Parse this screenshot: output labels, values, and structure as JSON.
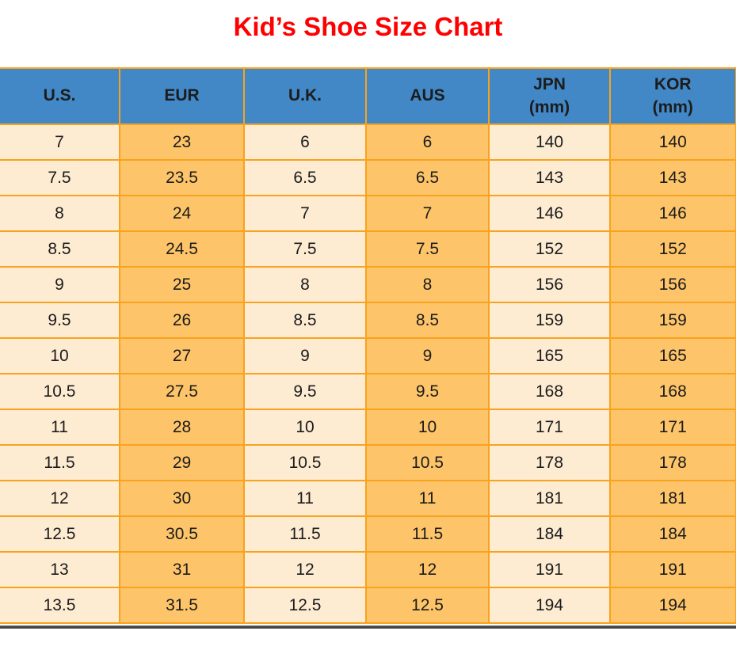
{
  "title": {
    "text": "Kid’s Shoe Size Chart"
  },
  "colors": {
    "title_red": "#FF0000",
    "header_blue": "#4288C7",
    "cell_cream": "#FDEBD2",
    "cell_orange": "#FDC469",
    "grid_orange": "#F9A21D",
    "bottom_bar": "#454545"
  },
  "table": {
    "columns": [
      {
        "key": "us",
        "label": "U.S."
      },
      {
        "key": "eur",
        "label": "EUR"
      },
      {
        "key": "uk",
        "label": "U.K."
      },
      {
        "key": "aus",
        "label": "AUS"
      },
      {
        "key": "jpn",
        "label": "JPN",
        "sublabel": "(mm)"
      },
      {
        "key": "kor",
        "label": "KOR",
        "sublabel": "(mm)"
      }
    ],
    "rows": [
      [
        "7",
        "23",
        "6",
        "6",
        "140",
        "140"
      ],
      [
        "7.5",
        "23.5",
        "6.5",
        "6.5",
        "143",
        "143"
      ],
      [
        "8",
        "24",
        "7",
        "7",
        "146",
        "146"
      ],
      [
        "8.5",
        "24.5",
        "7.5",
        "7.5",
        "152",
        "152"
      ],
      [
        "9",
        "25",
        "8",
        "8",
        "156",
        "156"
      ],
      [
        "9.5",
        "26",
        "8.5",
        "8.5",
        "159",
        "159"
      ],
      [
        "10",
        "27",
        "9",
        "9",
        "165",
        "165"
      ],
      [
        "10.5",
        "27.5",
        "9.5",
        "9.5",
        "168",
        "168"
      ],
      [
        "11",
        "28",
        "10",
        "10",
        "171",
        "171"
      ],
      [
        "11.5",
        "29",
        "10.5",
        "10.5",
        "178",
        "178"
      ],
      [
        "12",
        "30",
        "11",
        "11",
        "181",
        "181"
      ],
      [
        "12.5",
        "30.5",
        "11.5",
        "11.5",
        "184",
        "184"
      ],
      [
        "13",
        "31",
        "12",
        "12",
        "191",
        "191"
      ],
      [
        "13.5",
        "31.5",
        "12.5",
        "12.5",
        "194",
        "194"
      ]
    ]
  },
  "chart_data": {
    "type": "table",
    "title": "Kid’s Shoe Size Chart",
    "columns": [
      "U.S.",
      "EUR",
      "U.K.",
      "AUS",
      "JPN (mm)",
      "KOR (mm)"
    ],
    "rows": [
      [
        7,
        23,
        6,
        6,
        140,
        140
      ],
      [
        7.5,
        23.5,
        6.5,
        6.5,
        143,
        143
      ],
      [
        8,
        24,
        7,
        7,
        146,
        146
      ],
      [
        8.5,
        24.5,
        7.5,
        7.5,
        152,
        152
      ],
      [
        9,
        25,
        8,
        8,
        156,
        156
      ],
      [
        9.5,
        26,
        8.5,
        8.5,
        159,
        159
      ],
      [
        10,
        27,
        9,
        9,
        165,
        165
      ],
      [
        10.5,
        27.5,
        9.5,
        9.5,
        168,
        168
      ],
      [
        11,
        28,
        10,
        10,
        171,
        171
      ],
      [
        11.5,
        29,
        10.5,
        10.5,
        178,
        178
      ],
      [
        12,
        30,
        11,
        11,
        181,
        181
      ],
      [
        12.5,
        30.5,
        11.5,
        11.5,
        184,
        184
      ],
      [
        13,
        31,
        12,
        12,
        191,
        191
      ],
      [
        13.5,
        31.5,
        12.5,
        12.5,
        194,
        194
      ]
    ],
    "layout": {
      "header_fill": "#4288C7",
      "odd_column_fill": "#FDEBD2",
      "even_column_fill": "#FDC469",
      "grid": true
    }
  }
}
